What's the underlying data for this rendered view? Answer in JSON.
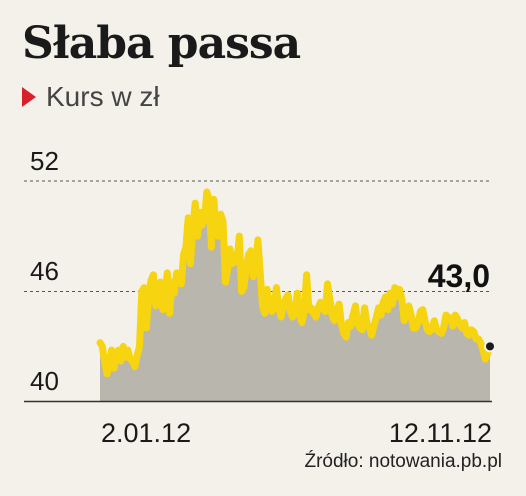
{
  "header": {
    "title": "Słaba passa",
    "subtitle": "Kurs w zł"
  },
  "colors": {
    "line": "#f6d410",
    "area": "#b9b6ae",
    "marker": "#d6202a",
    "background": "#f3f1ea"
  },
  "source": "Źródło: notowania.pb.pl",
  "chart_data": {
    "type": "area",
    "title": "Słaba passa",
    "subtitle": "Kurs w zł",
    "ylabel": "",
    "xlabel": "",
    "ylim": [
      40,
      52
    ],
    "yticks": [
      52,
      46,
      40
    ],
    "ytick_labels": [
      "52",
      "46",
      "40"
    ],
    "xtick_labels": [
      "2.01.12",
      "12.11.12"
    ],
    "x_start": "2.01.12",
    "x_end": "12.11.12",
    "grid": "dashed horizontal",
    "last_value_label": "43,0",
    "values": [
      43.2,
      43.0,
      42.2,
      41.5,
      42.1,
      42.8,
      41.8,
      42.5,
      42.8,
      42.2,
      43.0,
      42.4,
      42.8,
      42.3,
      42.2,
      41.9,
      42.5,
      43.0,
      46.0,
      46.2,
      44.0,
      45.8,
      46.6,
      46.9,
      45.2,
      45.9,
      46.5,
      45.0,
      45.9,
      47.0,
      44.8,
      46.5,
      45.9,
      47.0,
      46.6,
      46.4,
      48.0,
      48.4,
      50.0,
      47.5,
      49.5,
      50.8,
      49.0,
      50.3,
      49.6,
      49.9,
      51.4,
      51.0,
      48.4,
      51.0,
      49.3,
      49.0,
      50.2,
      49.8,
      46.5,
      47.2,
      48.3,
      47.5,
      48.0,
      47.6,
      49.0,
      46.0,
      46.2,
      47.3,
      48.0,
      48.2,
      46.8,
      47.3,
      48.8,
      47.0,
      45.2,
      44.8,
      46.1,
      45.3,
      44.9,
      45.2,
      46.2,
      45.1,
      44.6,
      45.2,
      45.6,
      45.8,
      44.9,
      44.6,
      44.8,
      45.9,
      44.7,
      44.3,
      45.0,
      46.9,
      45.0,
      45.1,
      44.8,
      44.6,
      45.1,
      45.4,
      45.2,
      44.9,
      46.4,
      45.6,
      44.7,
      44.4,
      45.0,
      45.3,
      44.2,
      43.7,
      43.5,
      44.3,
      44.1,
      44.7,
      45.2,
      44.2,
      44.0,
      43.9,
      45.1,
      44.2,
      44.1,
      43.6,
      44.1,
      44.6,
      45.1,
      44.7,
      45.4,
      45.7,
      45.0,
      45.9,
      45.3,
      46.2,
      45.7,
      46.1,
      45.6,
      44.4,
      44.6,
      45.2,
      44.7,
      44.0,
      44.0,
      44.3,
      44.9,
      45.0,
      44.4,
      43.9,
      43.8,
      44.0,
      44.4,
      43.9,
      43.8,
      43.7,
      44.0,
      44.7,
      44.6,
      44.5,
      44.1,
      44.7,
      44.5,
      44.2,
      44.0,
      44.3,
      43.7,
      43.6,
      43.9,
      43.8,
      43.4,
      43.4,
      43.2,
      42.8,
      42.3,
      42.6,
      43.0
    ]
  }
}
